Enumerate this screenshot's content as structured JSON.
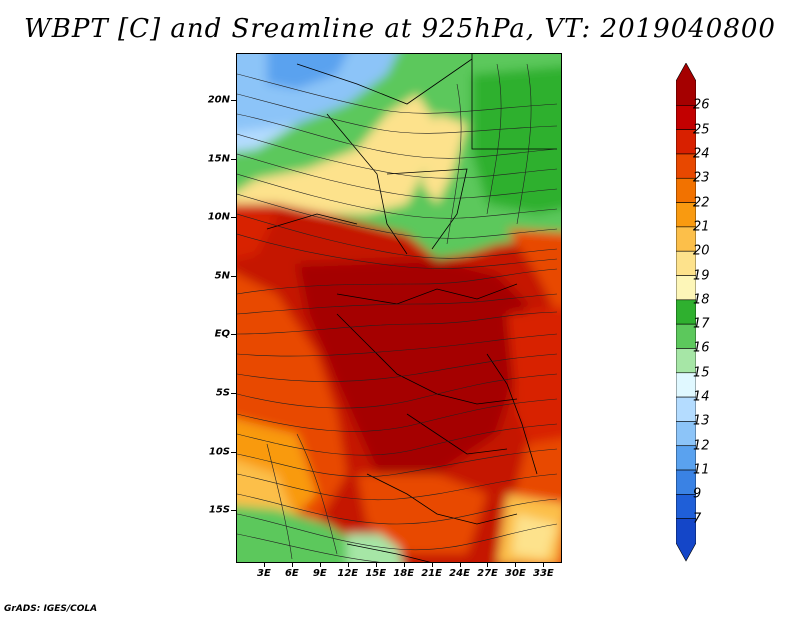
{
  "title": "WBPT [C] and Sreamline at 925hPa, VT: 2019040800",
  "credit": "GrADS: IGES/COLA",
  "map": {
    "lat_labels": [
      "20N",
      "15N",
      "10N",
      "5N",
      "EQ",
      "5S",
      "10S",
      "15S"
    ],
    "lon_labels": [
      "3E",
      "6E",
      "9E",
      "12E",
      "15E",
      "18E",
      "21E",
      "24E",
      "27E",
      "30E",
      "33E"
    ],
    "lat_range": [
      -19.5,
      24
    ],
    "lon_range": [
      0,
      35
    ]
  },
  "colorbar": {
    "labels": [
      "26",
      "25",
      "24",
      "23",
      "22",
      "21",
      "20",
      "19",
      "18",
      "17",
      "16",
      "15",
      "14",
      "13",
      "12",
      "11",
      "9",
      "7"
    ],
    "colors": [
      "#a50000",
      "#c20000",
      "#d82000",
      "#e84800",
      "#f27200",
      "#f99a10",
      "#fcbf4a",
      "#fde28c",
      "#fdf6b8",
      "#2fb02f",
      "#5cc85c",
      "#a6e6a6",
      "#e0f8ff",
      "#b4dcff",
      "#8cc4f8",
      "#5aa2ef",
      "#3a82e4",
      "#1f5fd8",
      "#1446c8"
    ]
  }
}
